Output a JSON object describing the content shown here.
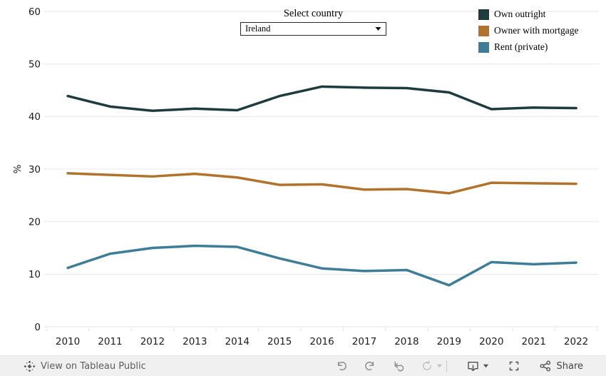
{
  "chart_data": {
    "type": "line",
    "title": "",
    "x": [
      "2010",
      "2011",
      "2012",
      "2013",
      "2014",
      "2015",
      "2016",
      "2017",
      "2018",
      "2019",
      "2020",
      "2021",
      "2022"
    ],
    "series": [
      {
        "name": "Own outright",
        "color": "#1e3b3d",
        "values": [
          43.9,
          41.9,
          41.1,
          41.5,
          41.2,
          43.9,
          45.7,
          45.5,
          45.4,
          44.6,
          41.4,
          41.7,
          41.6
        ]
      },
      {
        "name": "Owner with mortgage",
        "color": "#b1732b",
        "values": [
          29.2,
          28.9,
          28.6,
          29.1,
          28.4,
          27.0,
          27.1,
          26.1,
          26.2,
          25.4,
          27.4,
          27.3,
          27.2
        ]
      },
      {
        "name": "Rent (private)",
        "color": "#3d7d97",
        "values": [
          11.2,
          13.9,
          15.0,
          15.4,
          15.2,
          13.0,
          11.1,
          10.6,
          10.8,
          7.9,
          12.3,
          11.9,
          12.2
        ]
      }
    ],
    "xlabel": "",
    "ylabel": "%",
    "ylim": [
      0,
      60
    ],
    "y_ticks": [
      0,
      10,
      20,
      30,
      40,
      50,
      60
    ],
    "grid": true,
    "legend_position": "top-right"
  },
  "param_control": {
    "title": "Select country",
    "value": "Ireland"
  },
  "toolbar": {
    "view_label": "View on Tableau Public",
    "share_label": "Share"
  },
  "colors": {
    "gridline": "#e6e6e6",
    "axis_text": "#1c1c1c",
    "toolbar_bg": "#f0f0f0"
  }
}
